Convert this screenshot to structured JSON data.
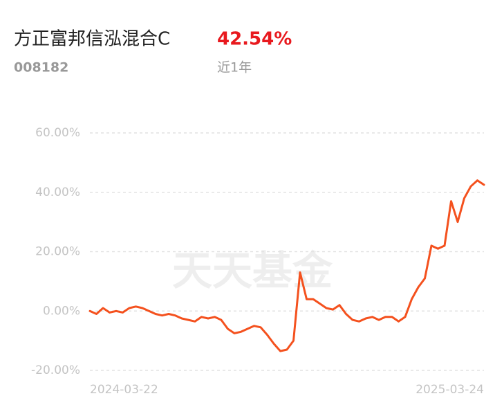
{
  "chart_data": {
    "type": "line",
    "title": "方正富邦信泓混合C",
    "fund_code": "008182",
    "return_label": "42.54%",
    "period": "近1年",
    "watermark": "天天基金",
    "categories": [
      "2024-03-22",
      null,
      null,
      null,
      null,
      null,
      null,
      null,
      null,
      null,
      null,
      null,
      null,
      null,
      null,
      null,
      null,
      null,
      null,
      null,
      null,
      null,
      null,
      null,
      null,
      null,
      null,
      null,
      null,
      null,
      null,
      null,
      null,
      null,
      null,
      null,
      null,
      null,
      null,
      null,
      null,
      null,
      null,
      null,
      null,
      null,
      null,
      null,
      null,
      null,
      null,
      null,
      null,
      null,
      null,
      null,
      null,
      null,
      null,
      null,
      "2025-03-24"
    ],
    "series": [
      {
        "name": "方正富邦信泓混合C",
        "color": "#f4511e",
        "values": [
          0,
          -1,
          1,
          -0.5,
          0,
          -0.5,
          1,
          1.5,
          1,
          0,
          -1,
          -1.5,
          -1,
          -1.5,
          -2.5,
          -3,
          -3.5,
          -2,
          -2.5,
          -2,
          -3,
          -6,
          -7.5,
          -7,
          -6,
          -5,
          -5.5,
          -8,
          -11,
          -13.5,
          -13,
          -10,
          13,
          4,
          4,
          2.5,
          1,
          0.5,
          2,
          -1,
          -3,
          -3.5,
          -2.5,
          -2,
          -3,
          -2,
          -2,
          -3.5,
          -2,
          4,
          8,
          11,
          22,
          21,
          22,
          37,
          30,
          38,
          42,
          44,
          42.54
        ]
      }
    ],
    "ylim": [
      -20,
      60
    ],
    "yticks": [
      {
        "value": 60,
        "label": "60.00%"
      },
      {
        "value": 40,
        "label": "40.00%"
      },
      {
        "value": 20,
        "label": "20.00%"
      },
      {
        "value": 0,
        "label": "0.00%"
      },
      {
        "value": -20,
        "label": "-20.00%"
      }
    ],
    "grid": true
  }
}
